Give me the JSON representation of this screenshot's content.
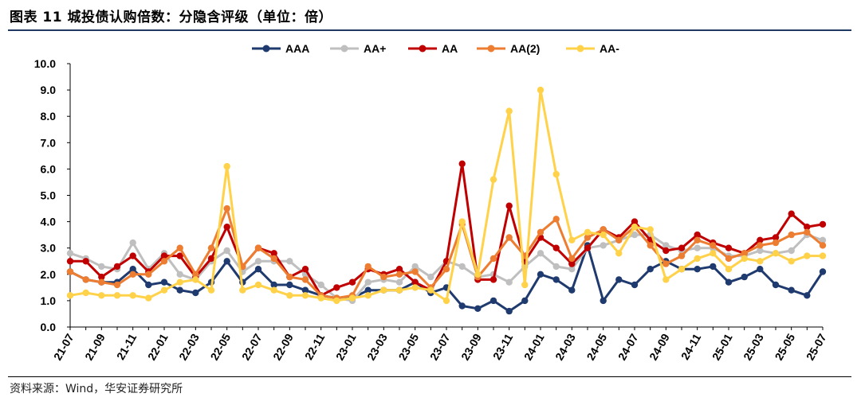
{
  "figure": {
    "title": "图表 11 城投债认购倍数：分隐含评级（单位：倍）",
    "source": "资料来源：Wind，华安证券研究所"
  },
  "chart_data": {
    "type": "line",
    "x": [
      "21-07",
      "21-08",
      "21-09",
      "21-10",
      "21-11",
      "21-12",
      "22-01",
      "22-02",
      "22-03",
      "22-04",
      "22-05",
      "22-06",
      "22-07",
      "22-08",
      "22-09",
      "22-10",
      "22-11",
      "22-12",
      "23-01",
      "23-02",
      "23-03",
      "23-04",
      "23-05",
      "23-06",
      "23-07",
      "23-08",
      "23-09",
      "23-10",
      "23-11",
      "23-12",
      "24-01",
      "24-02",
      "24-03",
      "24-04",
      "24-05",
      "24-06",
      "24-07",
      "24-08",
      "24-09",
      "24-10",
      "24-11",
      "24-12",
      "25-01",
      "25-02",
      "25-03",
      "25-04",
      "25-05",
      "25-06",
      "25-07"
    ],
    "x_tick_labels": [
      "21-07",
      "21-09",
      "21-11",
      "22-01",
      "22-03",
      "22-05",
      "22-07",
      "22-09",
      "22-11",
      "23-01",
      "23-03",
      "23-05",
      "23-07",
      "23-09",
      "23-11",
      "24-01",
      "24-03",
      "24-05",
      "24-07",
      "24-09",
      "24-11",
      "25-01",
      "25-03",
      "25-05",
      "25-07"
    ],
    "ylim": [
      0,
      10
    ],
    "y_ticks": [
      "0.0",
      "1.0",
      "2.0",
      "3.0",
      "4.0",
      "5.0",
      "6.0",
      "7.0",
      "8.0",
      "9.0",
      "10.0"
    ],
    "legend_position": "top-center",
    "grid": false,
    "series": [
      {
        "name": "AAA",
        "color": "#1f3a6e",
        "values": [
          2.1,
          1.8,
          1.7,
          1.7,
          2.2,
          1.6,
          1.7,
          1.4,
          1.3,
          1.7,
          2.5,
          1.7,
          2.2,
          1.6,
          1.6,
          1.4,
          1.2,
          1.1,
          1.1,
          1.4,
          1.4,
          1.4,
          1.7,
          1.3,
          1.5,
          0.8,
          0.7,
          1.0,
          0.6,
          1.0,
          2.0,
          1.8,
          1.4,
          3.1,
          1.0,
          1.8,
          1.6,
          2.2,
          2.5,
          2.2,
          2.2,
          2.3,
          1.7,
          1.9,
          2.2,
          1.6,
          1.4,
          1.2,
          2.1
        ]
      },
      {
        "name": "AA+",
        "color": "#bfbfbf",
        "values": [
          2.8,
          2.6,
          2.3,
          2.2,
          3.2,
          2.2,
          2.8,
          2.0,
          1.8,
          2.5,
          2.9,
          2.1,
          2.5,
          2.5,
          2.5,
          2.0,
          1.6,
          1.1,
          1.0,
          1.7,
          1.8,
          1.7,
          2.3,
          1.9,
          2.5,
          2.3,
          1.9,
          2.0,
          1.7,
          2.3,
          2.8,
          2.3,
          2.2,
          3.0,
          3.1,
          3.3,
          3.5,
          3.5,
          3.1,
          2.9,
          3.0,
          3.0,
          2.7,
          2.7,
          2.9,
          2.8,
          2.9,
          3.5,
          3.3
        ]
      },
      {
        "name": "AA",
        "color": "#c00000",
        "values": [
          2.5,
          2.5,
          1.9,
          2.3,
          2.7,
          2.1,
          2.7,
          2.7,
          1.9,
          2.6,
          3.8,
          2.3,
          3.0,
          2.8,
          1.9,
          2.2,
          1.2,
          1.5,
          1.7,
          2.2,
          2.0,
          2.2,
          1.7,
          1.4,
          2.5,
          6.2,
          1.8,
          1.8,
          4.6,
          2.5,
          3.4,
          3.0,
          2.4,
          3.0,
          3.7,
          3.4,
          4.0,
          3.3,
          2.9,
          3.0,
          3.5,
          3.2,
          3.0,
          2.8,
          3.3,
          3.4,
          4.3,
          3.8,
          3.9
        ]
      },
      {
        "name": "AA(2)",
        "color": "#ed7d31",
        "values": [
          2.1,
          1.8,
          1.7,
          1.6,
          2.0,
          2.0,
          2.5,
          3.0,
          2.0,
          3.0,
          4.5,
          2.3,
          3.0,
          2.6,
          1.9,
          1.8,
          1.2,
          1.1,
          1.2,
          2.3,
          1.9,
          2.0,
          2.1,
          1.5,
          2.2,
          3.9,
          1.9,
          2.6,
          3.4,
          2.7,
          3.6,
          4.1,
          2.6,
          3.4,
          3.7,
          3.3,
          3.8,
          3.1,
          2.4,
          2.7,
          3.3,
          3.1,
          2.6,
          2.8,
          3.1,
          3.2,
          3.5,
          3.6,
          3.1
        ]
      },
      {
        "name": "AA-",
        "color": "#ffd24a",
        "values": [
          1.2,
          1.3,
          1.2,
          1.2,
          1.2,
          1.1,
          1.4,
          1.7,
          1.8,
          1.4,
          6.1,
          1.4,
          1.6,
          1.4,
          1.2,
          1.2,
          1.1,
          1.0,
          1.1,
          1.2,
          1.4,
          1.4,
          1.5,
          1.4,
          1.0,
          4.0,
          2.0,
          5.6,
          8.2,
          1.6,
          9.0,
          5.8,
          3.3,
          3.6,
          3.5,
          2.8,
          3.8,
          3.7,
          1.8,
          2.2,
          2.6,
          2.8,
          2.2,
          2.6,
          2.5,
          2.8,
          2.5,
          2.7,
          2.7
        ]
      }
    ]
  }
}
